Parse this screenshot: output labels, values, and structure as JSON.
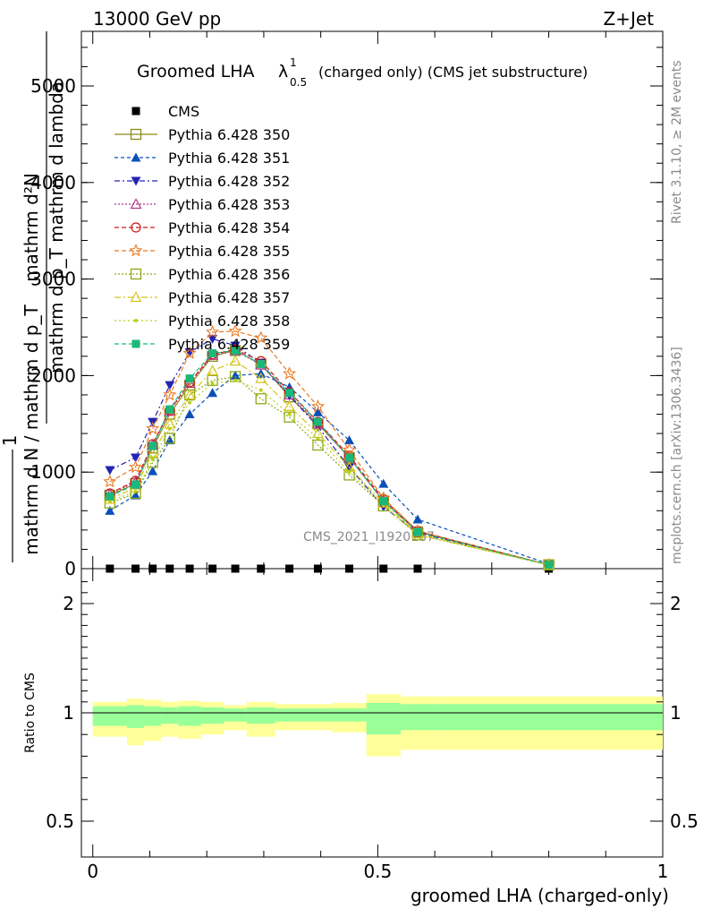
{
  "header": {
    "left": "13000 GeV pp",
    "right": "Z+Jet"
  },
  "side": {
    "top": "Rivet 3.1.10, ≥ 2M events",
    "bottom": "mcplots.cern.ch [arXiv:1306.3436]"
  },
  "watermark": "CMS_2021_I1920187",
  "title": {
    "main": "Groomed LHA",
    "lambda": "λ",
    "sup": "1",
    "sub": "0.5",
    "suffix": "(charged only) (CMS jet substructure)"
  },
  "ylabel_main": {
    "top_num": "mathrm d²N",
    "top_den": "mathrm d p_T mathrm d lambda",
    "left_one": "1",
    "bottom": "mathrm d N / mathrm d p_T"
  },
  "ylabel_ratio": "Ratio to CMS",
  "xlabel": "groomed LHA (charged-only)",
  "chart_data": [
    {
      "type": "line",
      "title": "Groomed LHA λ^1_0.5 (charged only) (CMS jet substructure)",
      "ylim": [
        0,
        5500
      ],
      "yticks": [
        0,
        1000,
        2000,
        3000,
        4000,
        5000
      ],
      "xlim": [
        -0.02,
        1.0
      ],
      "x": [
        0.03,
        0.075,
        0.105,
        0.135,
        0.17,
        0.21,
        0.25,
        0.295,
        0.345,
        0.395,
        0.45,
        0.51,
        0.57,
        0.8
      ],
      "series": [
        {
          "name": "CMS",
          "color": "#000000",
          "marker": "square-filled",
          "dash": "",
          "values": [
            0,
            0,
            0,
            0,
            0,
            0,
            0,
            0,
            0,
            0,
            0,
            0,
            0,
            0
          ]
        },
        {
          "name": "Pythia 6.428 350",
          "color": "#8b8b1a",
          "marker": "square-open",
          "dash": "",
          "values": [
            760,
            880,
            1250,
            1600,
            1900,
            2200,
            2260,
            2120,
            1780,
            1500,
            1150,
            700,
            380,
            40
          ]
        },
        {
          "name": "Pythia 6.428 351",
          "color": "#0b4fb8",
          "marker": "triangle-up-filled",
          "dash": "4,3",
          "values": [
            600,
            760,
            1010,
            1330,
            1600,
            1820,
            2000,
            2020,
            1880,
            1620,
            1330,
            880,
            510,
            50
          ]
        },
        {
          "name": "Pythia 6.428 352",
          "color": "#2424b3",
          "marker": "triangle-down-filled",
          "dash": "6,3,2,3",
          "values": [
            1020,
            1150,
            1520,
            1900,
            2240,
            2380,
            2310,
            2130,
            1790,
            1470,
            1050,
            640,
            370,
            40
          ]
        },
        {
          "name": "Pythia 6.428 353",
          "color": "#b5338f",
          "marker": "triangle-up-open",
          "dash": "2,2",
          "values": [
            770,
            900,
            1280,
            1630,
            1920,
            2210,
            2260,
            2110,
            1800,
            1500,
            1150,
            700,
            380,
            40
          ]
        },
        {
          "name": "Pythia 6.428 354",
          "color": "#cc1a1a",
          "marker": "circle-open",
          "dash": "5,3",
          "values": [
            780,
            910,
            1290,
            1640,
            1930,
            2220,
            2270,
            2150,
            1830,
            1520,
            1170,
            720,
            390,
            40
          ]
        },
        {
          "name": "Pythia 6.428 355",
          "color": "#e87a24",
          "marker": "star-open",
          "dash": "5,3",
          "values": [
            900,
            1050,
            1450,
            1800,
            2230,
            2450,
            2460,
            2390,
            2020,
            1680,
            1230,
            730,
            390,
            40
          ]
        },
        {
          "name": "Pythia 6.428 356",
          "color": "#8ca81a",
          "marker": "square-open",
          "dash": "2,2",
          "values": [
            680,
            780,
            1100,
            1350,
            1800,
            1950,
            1990,
            1760,
            1570,
            1280,
            970,
            650,
            350,
            40
          ]
        },
        {
          "name": "Pythia 6.428 357",
          "color": "#d6c418",
          "marker": "triangle-up-open",
          "dash": "7,3,2,3",
          "values": [
            720,
            840,
            1200,
            1500,
            1800,
            2050,
            2150,
            1970,
            1680,
            1400,
            1050,
            680,
            360,
            40
          ]
        },
        {
          "name": "Pythia 6.428 358",
          "color": "#b8d11a",
          "marker": "dot",
          "dash": "2,3",
          "values": [
            700,
            800,
            1130,
            1450,
            1720,
            1920,
            1950,
            1850,
            1600,
            1350,
            1000,
            660,
            350,
            40
          ]
        },
        {
          "name": "Pythia 6.428 359",
          "color": "#1ab87a",
          "marker": "square-filled",
          "dash": "5,3",
          "values": [
            750,
            870,
            1270,
            1650,
            1970,
            2230,
            2260,
            2120,
            1820,
            1520,
            1150,
            700,
            380,
            40
          ]
        }
      ]
    },
    {
      "type": "area",
      "title": "",
      "ylabel": "Ratio to CMS",
      "xlabel": "groomed LHA (charged-only)",
      "ylim": [
        0.4,
        2.3
      ],
      "yticks": [
        0.5,
        1,
        2
      ],
      "xlim": [
        -0.02,
        1.0
      ],
      "xticks": [
        0,
        0.5,
        1
      ],
      "bin_edges": [
        0,
        0.06,
        0.09,
        0.12,
        0.15,
        0.19,
        0.23,
        0.27,
        0.32,
        0.37,
        0.42,
        0.48,
        0.54,
        0.6,
        1.0
      ],
      "inner_band": {
        "color": "#99ff99",
        "lo": [
          0.94,
          0.93,
          0.94,
          0.95,
          0.94,
          0.95,
          0.96,
          0.95,
          0.96,
          0.96,
          0.96,
          0.9,
          0.92,
          0.92
        ],
        "hi": [
          1.06,
          1.07,
          1.06,
          1.05,
          1.06,
          1.05,
          1.04,
          1.05,
          1.04,
          1.04,
          1.04,
          1.09,
          1.08,
          1.08
        ]
      },
      "outer_band": {
        "color": "#ffff99",
        "lo": [
          0.89,
          0.85,
          0.87,
          0.89,
          0.88,
          0.9,
          0.92,
          0.89,
          0.92,
          0.92,
          0.91,
          0.8,
          0.83,
          0.83
        ],
        "hi": [
          1.1,
          1.13,
          1.12,
          1.1,
          1.11,
          1.1,
          1.07,
          1.1,
          1.08,
          1.08,
          1.09,
          1.17,
          1.15,
          1.15
        ]
      },
      "reference": 1
    }
  ]
}
